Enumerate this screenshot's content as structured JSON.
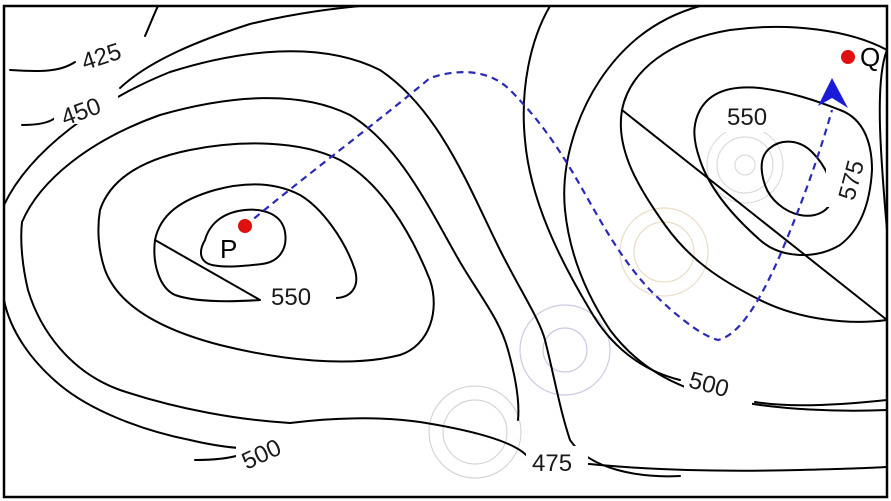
{
  "contour_labels": {
    "c425": "425",
    "c450": "450",
    "c550_left": "550",
    "c550_right": "550",
    "c575": "575",
    "c500_right": "500",
    "c500_bottom": "500",
    "c475": "475"
  },
  "points": {
    "p": {
      "label": "P"
    },
    "q": {
      "label": "Q"
    }
  },
  "colors": {
    "contour": "#000000",
    "route": "#2a2ab8",
    "point": "#e01010",
    "arrow": "#1a1ad8",
    "frame": "#000000"
  }
}
